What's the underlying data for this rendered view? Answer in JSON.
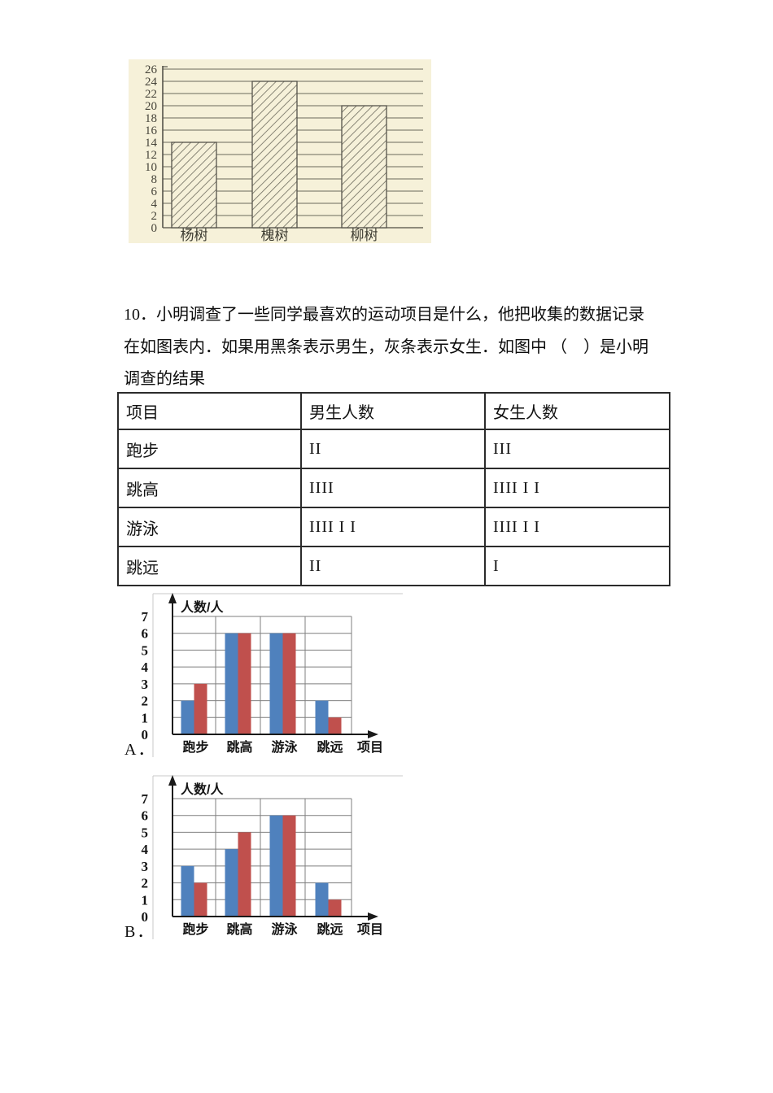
{
  "question": {
    "line1": "10．小明调查了一些同学最喜欢的运动项目是什么，他把收集的数据记录",
    "line2": "在如图表内．如果用黑条表示男生，灰条表示女生．如图中 （　）是小明",
    "line3": "调查的结果"
  },
  "table": {
    "headers": [
      "项目",
      "男生人数",
      "女生人数"
    ],
    "rows": [
      [
        "跑步",
        "II",
        "III"
      ],
      [
        "跳高",
        "IIII",
        "IIII I I"
      ],
      [
        "游泳",
        "IIII I I",
        "IIII I I"
      ],
      [
        "跳远",
        "II",
        "I"
      ]
    ]
  },
  "options": [
    {
      "label": "A．"
    },
    {
      "label": "B．"
    }
  ],
  "colors": {
    "bar_blue": "#4f81bd",
    "bar_red": "#c0504d",
    "grid_gray": "#7f7f7f",
    "faint_border": "#c9c9c9",
    "axis_black": "#1a1a1a",
    "scan_bg": "#f6f1d9",
    "scan_line": "#6b695c",
    "scan_ink": "#55534a"
  },
  "chart_data": [
    {
      "id": "tree",
      "type": "bar",
      "style": "hatched-scan",
      "title": "",
      "xlabel": "",
      "ylabel": "",
      "categories": [
        "杨树",
        "槐树",
        "柳树"
      ],
      "values": [
        14,
        24,
        20
      ],
      "ylim": [
        0,
        26
      ],
      "ytick_step": 2,
      "grid": true,
      "legend": "none"
    },
    {
      "id": "optA",
      "type": "bar",
      "style": "grouped",
      "option": "A",
      "title": "",
      "xlabel": "项目",
      "ylabel": "人数/人",
      "categories": [
        "跑步",
        "跳高",
        "游泳",
        "跳远"
      ],
      "series": [
        {
          "color": "#4f81bd",
          "values": [
            2,
            6,
            6,
            2
          ]
        },
        {
          "color": "#c0504d",
          "values": [
            3,
            6,
            6,
            1
          ]
        }
      ],
      "ylim": [
        0,
        7
      ],
      "ytick_step": 1,
      "grid": true,
      "legend": "none"
    },
    {
      "id": "optB",
      "type": "bar",
      "style": "grouped",
      "option": "B",
      "title": "",
      "xlabel": "项目",
      "ylabel": "人数/人",
      "categories": [
        "跑步",
        "跳高",
        "游泳",
        "跳远"
      ],
      "series": [
        {
          "color": "#4f81bd",
          "values": [
            3,
            4,
            6,
            2
          ]
        },
        {
          "color": "#c0504d",
          "values": [
            2,
            5,
            6,
            1
          ]
        }
      ],
      "ylim": [
        0,
        7
      ],
      "ytick_step": 1,
      "grid": true,
      "legend": "none"
    }
  ]
}
